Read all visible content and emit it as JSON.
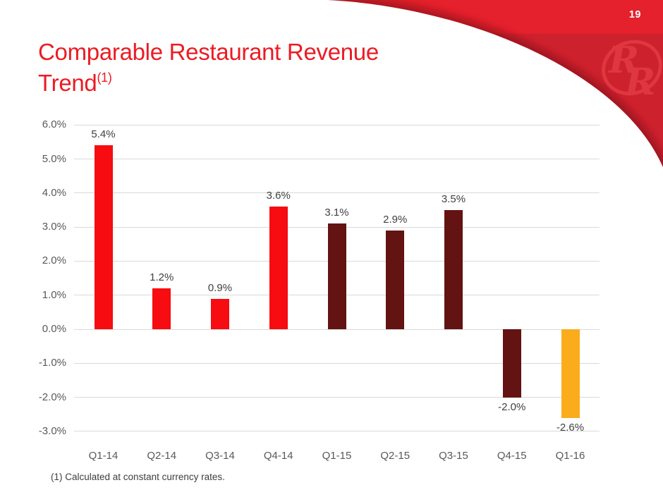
{
  "page": {
    "number": "19"
  },
  "title": {
    "line1": "Comparable Restaurant Revenue",
    "line2": "Trend",
    "footnote_marker": "(1)"
  },
  "footnote": "(1) Calculated at constant currency rates.",
  "logo": {
    "letter1": "R",
    "letter2": "R"
  },
  "colors": {
    "swoosh_top": "#E4212C",
    "swoosh_bottom": "#CE212E",
    "swoosh_shadow": "#7C1015",
    "logo_red": "#E03A42",
    "title_red": "#EC1B23",
    "bar_red": "#F60C11",
    "bar_maroon": "#621312",
    "bar_orange": "#FBAC1D",
    "axis_text": "#595959",
    "value_text": "#404040",
    "gridline": "#D9D9D9"
  },
  "chart_data": {
    "type": "bar",
    "title": "Comparable Restaurant Revenue Trend",
    "xlabel": "",
    "ylabel": "",
    "categories": [
      "Q1-14",
      "Q2-14",
      "Q3-14",
      "Q4-14",
      "Q1-15",
      "Q2-15",
      "Q3-15",
      "Q4-15",
      "Q1-16"
    ],
    "values": [
      5.4,
      1.2,
      0.9,
      3.6,
      3.1,
      2.9,
      3.5,
      -2.0,
      -2.6
    ],
    "labels": [
      "5.4%",
      "1.2%",
      "0.9%",
      "3.6%",
      "3.1%",
      "2.9%",
      "3.5%",
      "-2.0%",
      "-2.6%"
    ],
    "bar_color_keys": [
      "bar_red",
      "bar_red",
      "bar_red",
      "bar_red",
      "bar_maroon",
      "bar_maroon",
      "bar_maroon",
      "bar_maroon",
      "bar_orange"
    ],
    "y_tick_labels": [
      "6.0%",
      "5.0%",
      "4.0%",
      "3.0%",
      "2.0%",
      "1.0%",
      "0.0%",
      "-1.0%",
      "-2.0%",
      "-3.0%"
    ],
    "y_tick_values": [
      6,
      5,
      4,
      3,
      2,
      1,
      0,
      -1,
      -2,
      -3
    ],
    "ylim": [
      -3,
      6
    ],
    "grid": true,
    "legend": false
  }
}
